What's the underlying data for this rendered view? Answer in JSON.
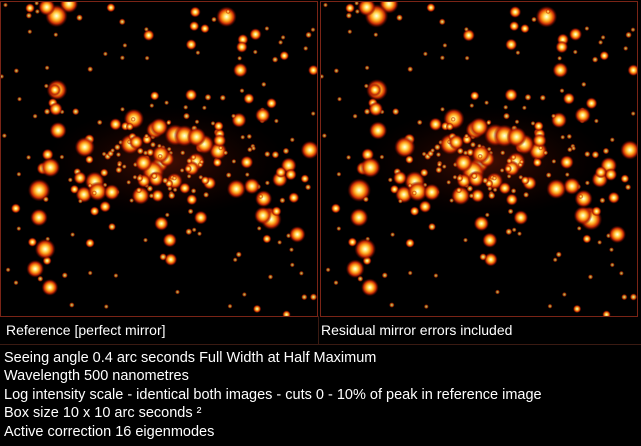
{
  "panels": [
    {
      "caption": "Reference [perfect mirror]"
    },
    {
      "caption": "Residual mirror errors included"
    }
  ],
  "notes": [
    "Seeing angle 0.4 arc seconds Full Width at Half Maximum",
    "Wavelength 500 nanometres",
    "Log intensity scale - identical both images - cuts 0 - 10% of peak in reference image",
    "Box size 10 x 10 arc seconds ²",
    "Active correction 16 eigenmodes"
  ]
}
